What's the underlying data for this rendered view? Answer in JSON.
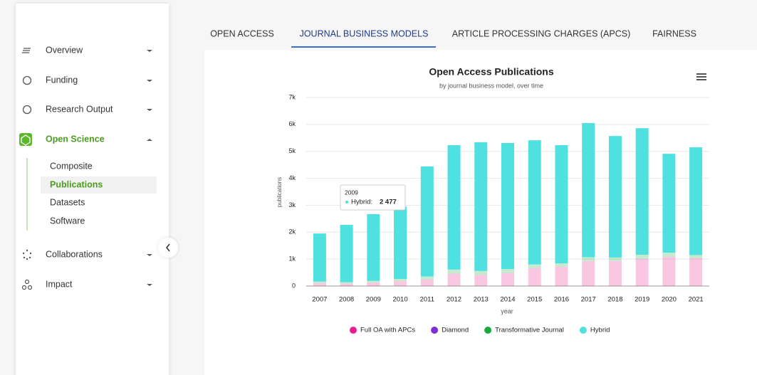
{
  "sidebar": {
    "items": [
      {
        "label": "Overview"
      },
      {
        "label": "Funding"
      },
      {
        "label": "Research Output"
      },
      {
        "label": "Open Science",
        "children": [
          "Composite",
          "Publications",
          "Datasets",
          "Software"
        ]
      },
      {
        "label": "Collaborations"
      },
      {
        "label": "Impact"
      }
    ]
  },
  "tabs": [
    "OPEN ACCESS",
    "JOURNAL BUSINESS MODELS",
    "ARTICLE PROCESSING CHARGES (APCS)",
    "FAIRNESS"
  ],
  "chart_data": {
    "type": "stacked_bar",
    "title": "Open Access Publications",
    "subtitle": "by journal business model, over time",
    "x_label": "year",
    "y_label": "publications",
    "categories": [
      "2007",
      "2008",
      "2009",
      "2010",
      "2011",
      "2012",
      "2013",
      "2014",
      "2015",
      "2016",
      "2017",
      "2018",
      "2019",
      "2020",
      "2021"
    ],
    "series": [
      {
        "name": "Full OA with APCs",
        "color": "#e91e8c",
        "values": [
          100,
          80,
          130,
          180,
          240,
          450,
          400,
          480,
          660,
          710,
          920,
          920,
          1000,
          1080,
          1030
        ]
      },
      {
        "name": "Diamond",
        "color": "#7b2fd6",
        "values": [
          5,
          5,
          3,
          5,
          5,
          10,
          10,
          10,
          10,
          10,
          10,
          10,
          10,
          10,
          10
        ]
      },
      {
        "name": "Transformative Journal",
        "color": "#1aaa3a",
        "values": [
          60,
          60,
          60,
          80,
          110,
          150,
          150,
          140,
          130,
          120,
          140,
          130,
          150,
          150,
          110
        ]
      },
      {
        "name": "Hybrid",
        "color": "#4fe0e0",
        "values": [
          1785,
          2125,
          2477,
          2685,
          4085,
          4620,
          4780,
          4680,
          4610,
          4390,
          4980,
          4510,
          4700,
          3670,
          4000
        ]
      }
    ],
    "ylim": [
      0,
      7000
    ],
    "yticks": [
      0,
      {
        "value": 1000,
        "label": "1k"
      },
      {
        "value": 2000,
        "label": "2k"
      },
      {
        "value": 3000,
        "label": "3k"
      },
      {
        "value": 4000,
        "label": "4k"
      },
      {
        "value": 5000,
        "label": "5k"
      },
      {
        "value": 6000,
        "label": "6k"
      },
      {
        "value": 7000,
        "label": "7k"
      }
    ],
    "grid": true,
    "tooltip": {
      "title": "2009",
      "label": "Hybrid:",
      "value": "2 477"
    }
  }
}
